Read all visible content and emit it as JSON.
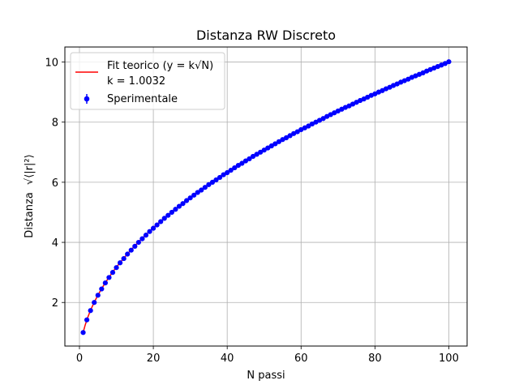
{
  "chart_data": {
    "type": "scatter",
    "title": "Distanza RW Discreto",
    "xlabel": "N passi",
    "ylabel_text": "Distanza",
    "ylabel_math": "√⟨|r|²⟩",
    "xlim": [
      -3.95,
      104.95
    ],
    "ylim": [
      0.55,
      10.5
    ],
    "xticks": [
      0,
      20,
      40,
      60,
      80,
      100
    ],
    "yticks": [
      2,
      4,
      6,
      8,
      10
    ],
    "grid": true,
    "legend_position": "top-left",
    "colors": {
      "fit": "#ff0000",
      "data": "#0000ff"
    },
    "series": [
      {
        "name": "Fit teorico (y = k√N)",
        "kind": "line",
        "k": 1.0032,
        "label_lines": [
          "Fit teorico (y = k√N)",
          "k = 1.0032"
        ],
        "x_start": 1,
        "x_end": 100
      },
      {
        "name": "Sperimentale",
        "kind": "errorbar",
        "x_start": 1,
        "x_end": 100,
        "y": [
          1.0,
          1.42,
          1.73,
          2.0,
          2.24,
          2.45,
          2.65,
          2.83,
          3.0,
          3.16,
          3.32,
          3.46,
          3.61,
          3.74,
          3.87,
          4.0,
          4.12,
          4.24,
          4.36,
          4.47,
          4.58,
          4.69,
          4.8,
          4.9,
          5.0,
          5.1,
          5.2,
          5.29,
          5.39,
          5.48,
          5.57,
          5.66,
          5.74,
          5.83,
          5.92,
          6.0,
          6.08,
          6.16,
          6.25,
          6.32,
          6.4,
          6.48,
          6.56,
          6.63,
          6.71,
          6.78,
          6.86,
          6.93,
          7.0,
          7.07,
          7.14,
          7.21,
          7.28,
          7.35,
          7.42,
          7.48,
          7.55,
          7.62,
          7.68,
          7.75,
          7.81,
          7.87,
          7.94,
          8.0,
          8.06,
          8.12,
          8.19,
          8.25,
          8.31,
          8.37,
          8.43,
          8.49,
          8.54,
          8.6,
          8.66,
          8.72,
          8.77,
          8.83,
          8.89,
          8.94,
          9.0,
          9.05,
          9.11,
          9.16,
          9.22,
          9.27,
          9.33,
          9.38,
          9.43,
          9.49,
          9.54,
          9.59,
          9.64,
          9.7,
          9.75,
          9.8,
          9.85,
          9.9,
          9.95,
          10.01
        ]
      }
    ]
  }
}
